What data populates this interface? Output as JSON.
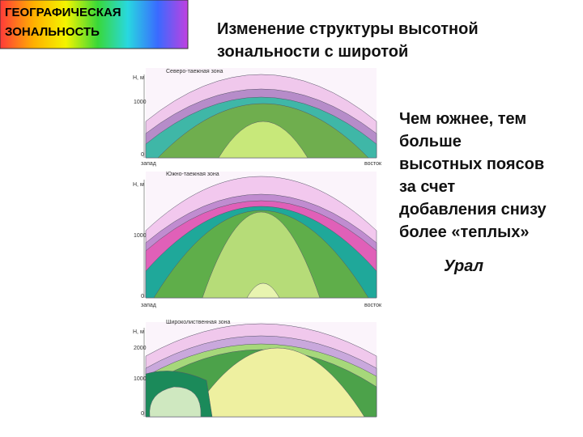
{
  "header": {
    "lines": [
      "ГЕОГРАФИЧЕСКАЯ",
      "ЗОНАЛЬНОСТЬ"
    ]
  },
  "title": {
    "lines": [
      "Изменение структуры высотной",
      "зональности с широтой"
    ]
  },
  "body": {
    "lines": [
      "Чем южнее, тем",
      "больше",
      "высотных поясов",
      "за счет",
      "добавления снизу",
      "более «теплых»"
    ]
  },
  "note": "Урал",
  "diagrams": [
    {
      "zone": "Северо-таежная зона",
      "y_unit": "Н, м",
      "ticks": [
        "1000",
        "0"
      ],
      "west": "запад",
      "east": "восток"
    },
    {
      "zone": "Южно-таежная зона",
      "y_unit": "Н, м",
      "ticks": [
        "1000",
        "0"
      ],
      "west": "запад",
      "east": "восток"
    },
    {
      "zone": "Широколиственная зона",
      "y_unit": "Н, м",
      "ticks": [
        "2000",
        "1000",
        "0"
      ]
    }
  ]
}
